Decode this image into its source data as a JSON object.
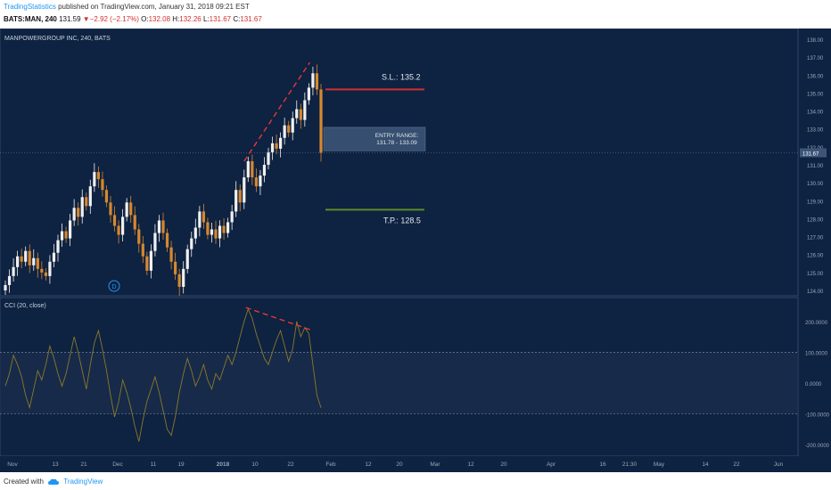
{
  "header": {
    "publisher": "TradingStatistics",
    "published_text": "published on TradingView.com, January 31, 2018 09:21 EST",
    "symbol": "BATS:MAN, 240",
    "last": "131.59",
    "change": "−2.92 (−2.17%)",
    "o_label": "O:",
    "o_value": "132.08",
    "h_label": "H:",
    "h_value": "132.26",
    "l_label": "L:",
    "l_value": "131.67",
    "c_label": "C:",
    "c_value": "131.67"
  },
  "footer": {
    "created_with": "Created with",
    "brand": "TradingView"
  },
  "colors": {
    "background": "#0e2241",
    "up_candle": "#f0f0f0",
    "down_candle": "#d6882e",
    "stop_loss": "#d32f2f",
    "take_profit": "#5d8a2b",
    "entry_box": "#3d5678",
    "cci_line": "#8a7a2a",
    "divergence": "#e53935",
    "grid_text": "#9aa7b8"
  },
  "chart_data": [
    {
      "type": "candlestick",
      "title": "MANPOWERGROUP INC, 240, BATS",
      "ylim": [
        124,
        138
      ],
      "y_ticks": [
        "138.00",
        "137.00",
        "136.00",
        "135.00",
        "134.00",
        "133.00",
        "132.00",
        "131.00",
        "130.00",
        "129.00",
        "128.00",
        "127.00",
        "126.00",
        "125.00",
        "124.00"
      ],
      "last_price_label": "131.67",
      "x_ticks": [
        "Nov",
        "13",
        "21",
        "Dec",
        "11",
        "19",
        "2018",
        "10",
        "22",
        "Feb",
        "12",
        "20",
        "Mar",
        "12",
        "20",
        "Apr",
        "16",
        "21:30",
        "May",
        "14",
        "22",
        "Jun"
      ],
      "closes": [
        124.3,
        124.8,
        125.3,
        125.9,
        125.6,
        126.2,
        125.4,
        125.8,
        125.2,
        125.0,
        124.8,
        125.6,
        126.1,
        126.8,
        127.3,
        126.9,
        127.9,
        128.6,
        128.1,
        129.2,
        128.7,
        129.8,
        130.6,
        130.2,
        129.6,
        128.9,
        128.2,
        127.6,
        127.1,
        128.1,
        128.9,
        128.2,
        127.4,
        126.6,
        125.9,
        125.1,
        126.2,
        127.2,
        127.9,
        127.2,
        126.4,
        125.6,
        124.9,
        124.2,
        125.2,
        126.3,
        126.9,
        127.5,
        128.4,
        127.8,
        127.1,
        127.4,
        126.9,
        127.6,
        127.2,
        127.8,
        128.4,
        129.6,
        128.9,
        130.3,
        131.2,
        130.3,
        129.8,
        130.4,
        131.0,
        131.7,
        132.2,
        131.9,
        132.5,
        133.2,
        132.8,
        133.6,
        134.1,
        133.5,
        134.6,
        135.3,
        136.1,
        135.2,
        131.67
      ],
      "annotations": {
        "stop_loss": {
          "label": "S.L.: 135.2",
          "price": 135.2
        },
        "entry": {
          "label_line1": "ENTRY RANGE:",
          "label_line2": "131.78 - 133.09",
          "low": 131.78,
          "high": 133.09
        },
        "take_profit": {
          "label": "T.P.: 128.5",
          "price": 128.5
        }
      },
      "marker": "D"
    },
    {
      "type": "line",
      "title": "CCI (20, close)",
      "ylim": [
        -220,
        260
      ],
      "y_ticks": [
        "200.0000",
        "100.0000",
        "0.0000",
        "-100.0000",
        "-200.0000"
      ],
      "levels": [
        100,
        -100
      ],
      "values": [
        -10,
        30,
        90,
        60,
        20,
        -40,
        -80,
        -20,
        40,
        10,
        60,
        120,
        80,
        30,
        -10,
        30,
        90,
        150,
        100,
        40,
        -20,
        60,
        130,
        170,
        110,
        40,
        -40,
        -110,
        -60,
        10,
        -30,
        -80,
        -140,
        -190,
        -120,
        -60,
        -20,
        20,
        -30,
        -90,
        -150,
        -170,
        -110,
        -30,
        30,
        80,
        40,
        -10,
        20,
        60,
        10,
        -20,
        30,
        10,
        50,
        90,
        60,
        100,
        150,
        200,
        240,
        210,
        160,
        120,
        80,
        60,
        100,
        140,
        170,
        120,
        70,
        110,
        200,
        150,
        180,
        160,
        60,
        -40,
        -80
      ]
    }
  ]
}
